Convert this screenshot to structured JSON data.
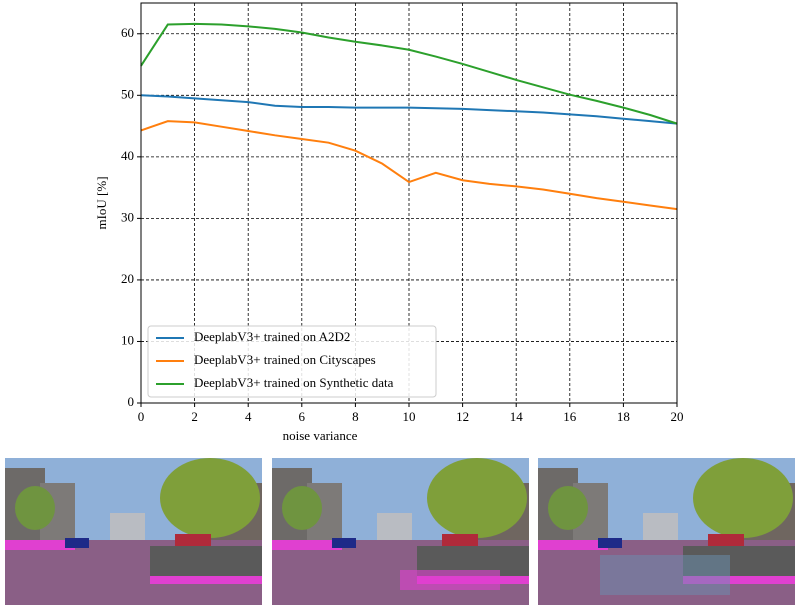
{
  "chart_data": {
    "type": "line",
    "x": [
      0,
      1,
      2,
      3,
      4,
      5,
      6,
      7,
      8,
      9,
      10,
      11,
      12,
      13,
      14,
      15,
      16,
      17,
      18,
      19,
      20
    ],
    "series": [
      {
        "name": "DeeplabV3+ trained on A2D2",
        "color": "#1f77b4",
        "values": [
          50,
          49.8,
          49.5,
          49.2,
          48.9,
          48.3,
          48.1,
          48.1,
          48.0,
          48.0,
          48.0,
          47.9,
          47.8,
          47.6,
          47.4,
          47.2,
          46.9,
          46.6,
          46.2,
          45.8,
          45.4
        ]
      },
      {
        "name": "DeeplabV3+ trained on Cityscapes",
        "color": "#ff7f0e",
        "values": [
          44.3,
          45.8,
          45.6,
          44.9,
          44.2,
          43.5,
          42.9,
          42.3,
          41.0,
          38.9,
          35.9,
          37.4,
          36.2,
          35.6,
          35.2,
          34.7,
          34.0,
          33.3,
          32.7,
          32.1,
          31.5
        ]
      },
      {
        "name": "DeeplabV3+ trained on Synthetic data",
        "color": "#2ca02c",
        "values": [
          54.8,
          61.5,
          61.6,
          61.5,
          61.2,
          60.8,
          60.2,
          59.4,
          58.7,
          58.1,
          57.4,
          56.3,
          55.1,
          53.8,
          52.5,
          51.3,
          50.1,
          49.1,
          48.0,
          46.8,
          45.4
        ]
      }
    ],
    "xlabel": "noise variance",
    "ylabel": "mIoU [%]",
    "xlim": [
      0,
      20
    ],
    "ylim": [
      0,
      65
    ],
    "xticks": [
      0,
      2,
      4,
      6,
      8,
      10,
      12,
      14,
      16,
      18,
      20
    ],
    "yticks": [
      0,
      10,
      20,
      30,
      40,
      50,
      60
    ],
    "grid": true,
    "legend": "lower left"
  }
}
